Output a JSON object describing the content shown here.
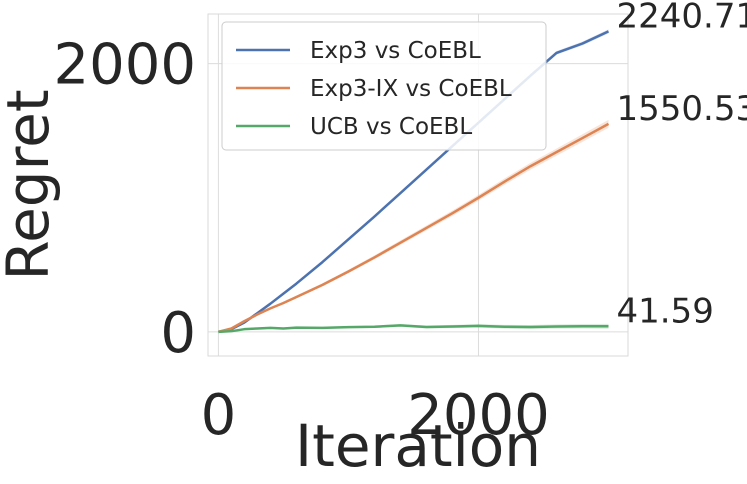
{
  "chart_data": {
    "type": "line",
    "xlabel": "Iteration",
    "ylabel": "Regret",
    "xlim": [
      -80,
      3150
    ],
    "ylim": [
      -180,
      2370
    ],
    "xticks": [
      0,
      2000
    ],
    "yticks": [
      0,
      2000
    ],
    "grid": true,
    "legend_position": "upper-left",
    "colors": {
      "Exp3 vs CoEBL": "#4c72b0",
      "Exp3-IX vs CoEBL": "#dd8452",
      "UCB vs CoEBL": "#55a868"
    },
    "series": [
      {
        "name": "Exp3 vs CoEBL",
        "color": "#4c72b0",
        "end_label": "2240.71",
        "band": 15,
        "x": [
          0,
          100,
          200,
          300,
          400,
          500,
          600,
          800,
          1000,
          1200,
          1400,
          1600,
          1800,
          2000,
          2200,
          2400,
          2600,
          2800,
          3000
        ],
        "y": [
          0,
          20,
          70,
          140,
          210,
          285,
          360,
          520,
          690,
          860,
          1035,
          1210,
          1385,
          1560,
          1735,
          1910,
          2080,
          2150,
          2240.71
        ]
      },
      {
        "name": "Exp3-IX vs CoEBL",
        "color": "#dd8452",
        "end_label": "1550.53",
        "band": 30,
        "x": [
          0,
          100,
          200,
          300,
          400,
          500,
          600,
          800,
          1000,
          1200,
          1400,
          1600,
          1800,
          2000,
          2200,
          2400,
          2600,
          2800,
          3000
        ],
        "y": [
          0,
          25,
          80,
          130,
          175,
          215,
          260,
          350,
          450,
          555,
          665,
          775,
          885,
          1000,
          1120,
          1235,
          1340,
          1445,
          1550.53
        ]
      },
      {
        "name": "UCB vs CoEBL",
        "color": "#55a868",
        "end_label": "41.59",
        "band": 18,
        "x": [
          0,
          100,
          200,
          300,
          400,
          500,
          600,
          800,
          1000,
          1200,
          1400,
          1600,
          1800,
          2000,
          2200,
          2400,
          2600,
          2800,
          3000
        ],
        "y": [
          0,
          5,
          20,
          25,
          30,
          25,
          32,
          30,
          35,
          38,
          48,
          36,
          40,
          45,
          38,
          36,
          40,
          42,
          41.59
        ]
      }
    ]
  }
}
